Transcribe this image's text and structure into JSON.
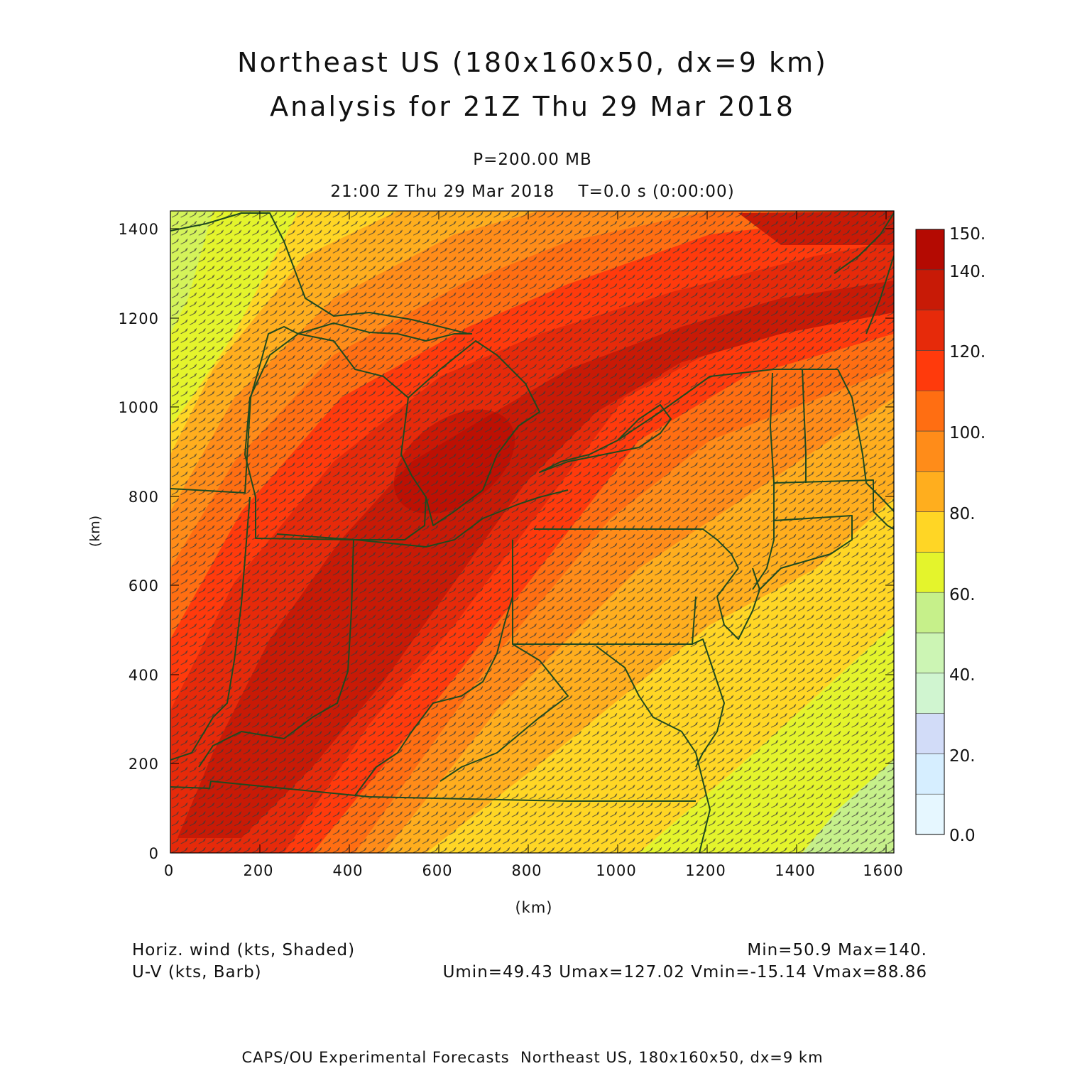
{
  "header": {
    "title_line1": "Northeast US (180x160x50, dx=9 km)",
    "title_line2": "Analysis for 21Z Thu 29 Mar 2018",
    "level": "P=200.00 MB",
    "valid_time": "21:00 Z Thu 29 Mar 2018    T=0.0 s (0:00:00)"
  },
  "map": {
    "x_axis_label": "(km)",
    "y_axis_label": "(km)",
    "x_ticks": [
      "0",
      "200",
      "400",
      "600",
      "800",
      "1000",
      "1200",
      "1400",
      "1600"
    ],
    "y_ticks": [
      "0",
      "200",
      "400",
      "600",
      "800",
      "1000",
      "1200",
      "1400"
    ],
    "x_range_km": [
      0,
      1620
    ],
    "y_range_km": [
      0,
      1440
    ],
    "field": "Horiz. wind speed (shaded) with U-V wind barbs",
    "border_color": "#1f4a1f",
    "barb_color": "#3a3a3a"
  },
  "colorbar": {
    "labels": [
      "150.",
      "140.",
      "120.",
      "100.",
      "80.",
      "60.",
      "40.",
      "20.",
      "0.0"
    ],
    "label_values": [
      150,
      140,
      120,
      100,
      80,
      60,
      40,
      20,
      0
    ],
    "bins": [
      {
        "min": 0,
        "max": 10,
        "color": "#e6f7ff"
      },
      {
        "min": 10,
        "max": 20,
        "color": "#d6eeff"
      },
      {
        "min": 20,
        "max": 30,
        "color": "#d2dcf8"
      },
      {
        "min": 30,
        "max": 40,
        "color": "#d0f5d0"
      },
      {
        "min": 40,
        "max": 50,
        "color": "#ccf5b4"
      },
      {
        "min": 50,
        "max": 60,
        "color": "#c6f08a"
      },
      {
        "min": 60,
        "max": 70,
        "color": "#e4f42c"
      },
      {
        "min": 70,
        "max": 80,
        "color": "#ffd625"
      },
      {
        "min": 80,
        "max": 90,
        "color": "#ffae1e"
      },
      {
        "min": 90,
        "max": 100,
        "color": "#ff8c19"
      },
      {
        "min": 100,
        "max": 110,
        "color": "#ff6e12"
      },
      {
        "min": 110,
        "max": 120,
        "color": "#ff3a0c"
      },
      {
        "min": 120,
        "max": 130,
        "color": "#e62a0a"
      },
      {
        "min": 130,
        "max": 140,
        "color": "#c81a06"
      },
      {
        "min": 140,
        "max": 150,
        "color": "#b40a02"
      }
    ]
  },
  "stats": {
    "field1": "Horiz. wind (kts, Shaded)",
    "field2": "U-V (kts, Barb)",
    "minmax": "Min=50.9  Max=140.",
    "uvminmax": "Umin=49.43  Umax=127.02  Vmin=-15.14  Vmax=88.86"
  },
  "footer": "CAPS/OU Experimental Forecasts  Northeast US, 180x160x50, dx=9 km"
}
